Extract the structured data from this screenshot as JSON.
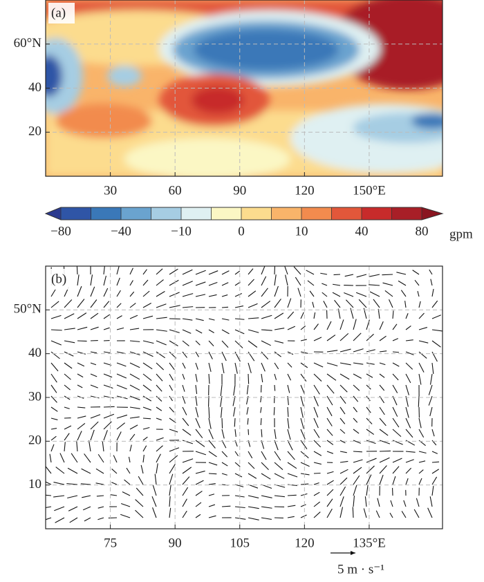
{
  "panels": [
    {
      "label": "(a)",
      "xlim": [
        0,
        184
      ],
      "ylim": [
        0,
        80
      ],
      "xticks": [
        30,
        60,
        90,
        120,
        {
          "value": 150,
          "label": "150°E"
        }
      ],
      "yticks": [
        {
          "value": 60,
          "label": "60°N"
        },
        40,
        20
      ]
    },
    {
      "label": "(b)",
      "xlim": [
        60,
        152
      ],
      "ylim": [
        0,
        60
      ],
      "xticks": [
        75,
        90,
        105,
        120,
        {
          "value": 135,
          "label": "135°E"
        }
      ],
      "yticks": [
        {
          "value": 50,
          "label": "50°N"
        },
        40,
        30,
        20,
        10
      ],
      "reference_vector": {
        "value": 5,
        "label": "5 m · s⁻¹"
      }
    }
  ],
  "colorbar": {
    "levels": [
      -80,
      -60,
      -40,
      -20,
      -10,
      -5,
      0,
      5,
      10,
      20,
      40,
      60,
      80
    ],
    "colors": [
      "#2b3a8f",
      "#2f55a6",
      "#3a78b8",
      "#6aa3cf",
      "#a6cde3",
      "#dff0f2",
      "#fbf7c4",
      "#fcdc8e",
      "#f9b46a",
      "#f28b4e",
      "#e2573a",
      "#c72b2b",
      "#a81f27",
      "#8a1520"
    ],
    "ticks": [
      {
        "value": -80,
        "label": "−80"
      },
      {
        "value": -40,
        "label": "−40"
      },
      {
        "value": -10,
        "label": "−10"
      },
      0,
      10,
      40,
      80
    ],
    "unit": "gpm"
  }
}
